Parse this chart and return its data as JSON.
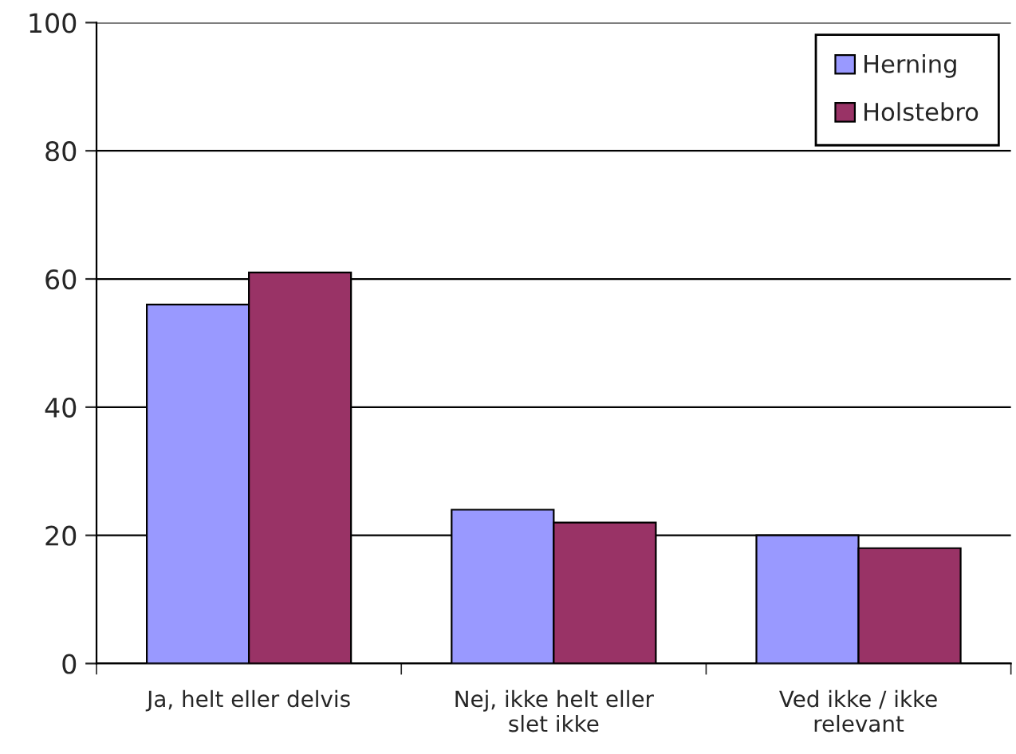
{
  "chart_data": {
    "type": "bar",
    "categories": [
      "Ja, helt eller delvis",
      "Nej, ikke helt eller\nslet ikke",
      "Ved ikke / ikke\nrelevant"
    ],
    "series": [
      {
        "name": "Herning",
        "color": "#9999ff",
        "values": [
          56,
          24,
          20
        ]
      },
      {
        "name": "Holstebro",
        "color": "#993366",
        "values": [
          61,
          22,
          18
        ]
      }
    ],
    "ylim": [
      0,
      100
    ],
    "yticks": [
      0,
      20,
      40,
      60,
      80,
      100
    ],
    "grid": "y",
    "legend": "top right"
  }
}
